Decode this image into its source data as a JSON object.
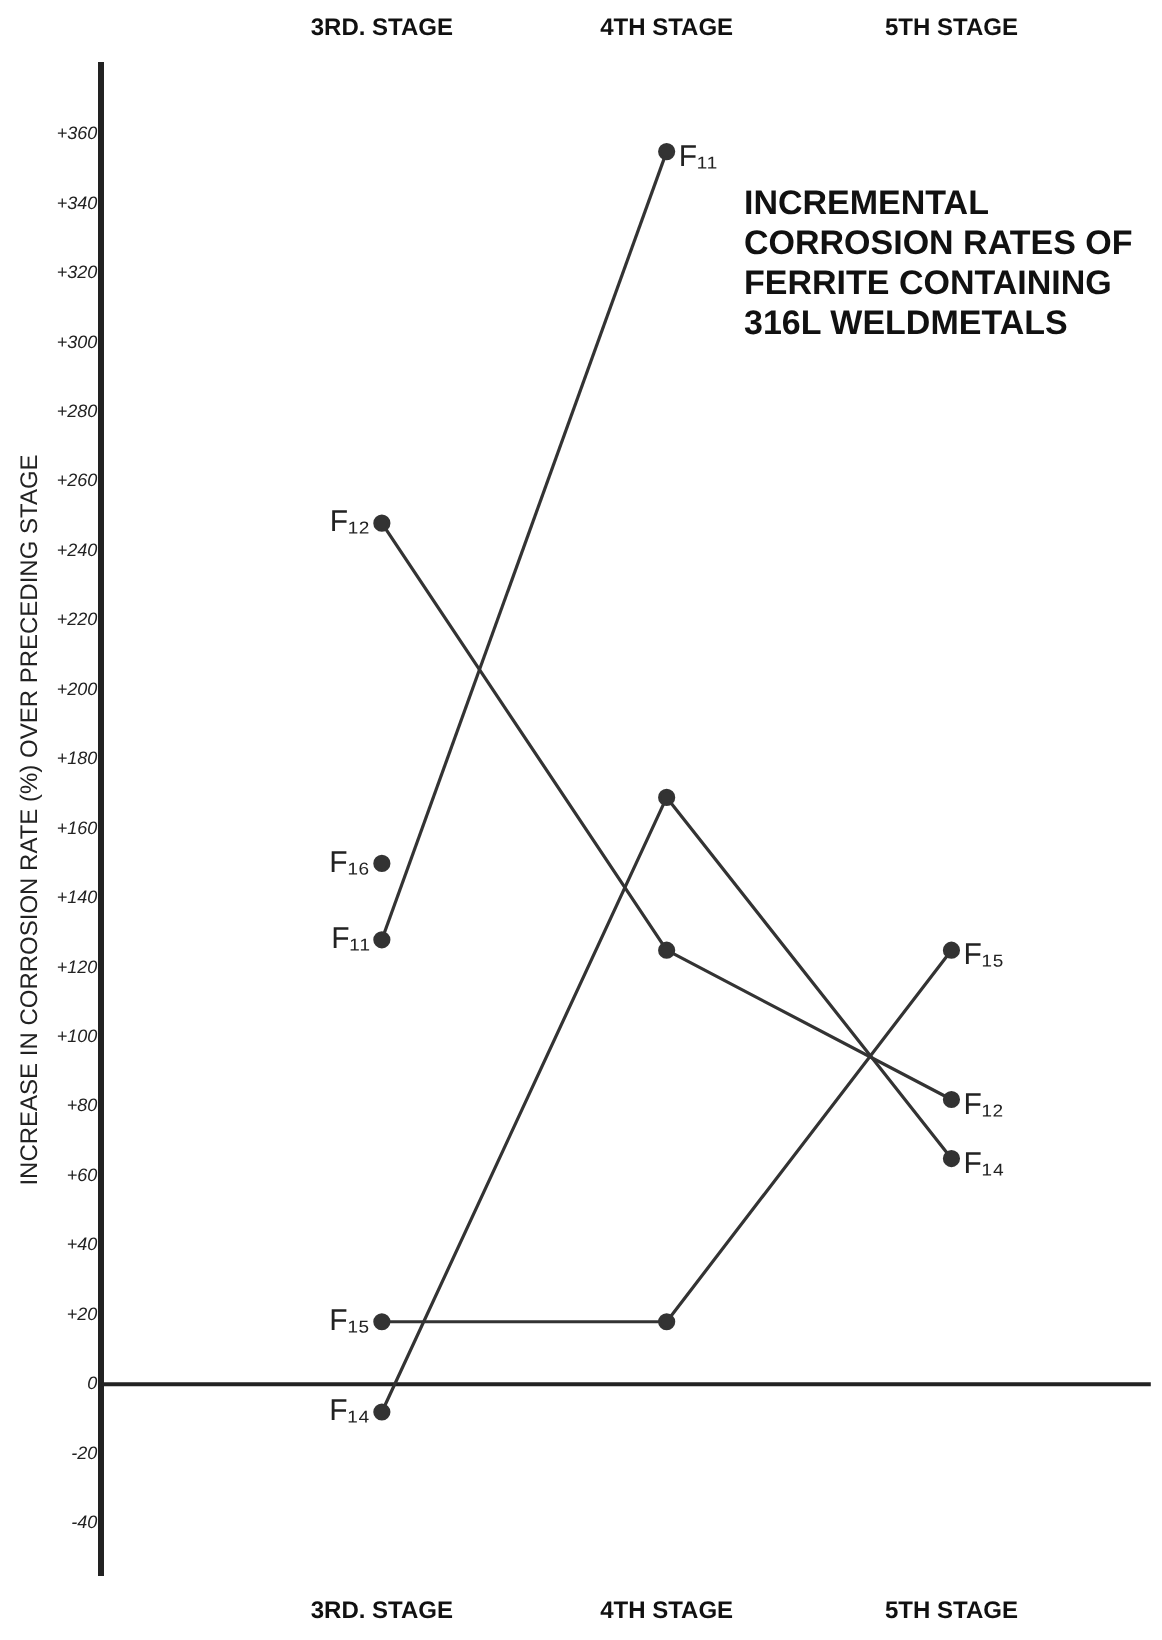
{
  "chart_data": {
    "type": "line",
    "title": "INCREMENTAL CORROSION RATES OF FERRITE CONTAINING 316L WELDMETALS",
    "ylabel": "INCREASE IN CORROSION RATE (%) OVER PRECEDING STAGE",
    "categories": [
      "3RD. STAGE",
      "4TH STAGE",
      "5TH STAGE"
    ],
    "series": [
      {
        "name": "F₁₁",
        "color": "#333333",
        "values": [
          128,
          355,
          null
        ]
      },
      {
        "name": "F₁₂",
        "color": "#333333",
        "values": [
          248,
          125,
          82
        ]
      },
      {
        "name": "F₁₄",
        "color": "#333333",
        "values": [
          -8,
          169,
          65
        ]
      },
      {
        "name": "F₁₅",
        "color": "#333333",
        "values": [
          18,
          18,
          125
        ]
      },
      {
        "name": "F₁₆",
        "color": "#333333",
        "values": [
          150,
          null,
          null
        ]
      }
    ],
    "ylim": [
      -55,
      380
    ],
    "yticks": [
      {
        "value": -40,
        "label": "-40"
      },
      {
        "value": -20,
        "label": "-20"
      },
      0,
      {
        "value": 20,
        "label": "+20"
      },
      {
        "value": 40,
        "label": "+40"
      },
      {
        "value": 60,
        "label": "+60"
      },
      {
        "value": 80,
        "label": "+80"
      },
      {
        "value": 100,
        "label": "+100"
      },
      {
        "value": 120,
        "label": "+120"
      },
      {
        "value": 140,
        "label": "+140"
      },
      {
        "value": 160,
        "label": "+160"
      },
      {
        "value": 180,
        "label": "+180"
      },
      {
        "value": 200,
        "label": "+200"
      },
      {
        "value": 220,
        "label": "+220"
      },
      {
        "value": 240,
        "label": "+240"
      },
      {
        "value": 260,
        "label": "+260"
      },
      {
        "value": 280,
        "label": "+280"
      },
      {
        "value": 300,
        "label": "+300"
      },
      {
        "value": 320,
        "label": "+320"
      },
      {
        "value": 340,
        "label": "+340"
      },
      {
        "value": 360,
        "label": "+360"
      }
    ],
    "ref_lines": [
      {
        "axis": "y",
        "value": 0,
        "color": "#222222"
      }
    ],
    "grid": false,
    "legend": false,
    "marker": "circle",
    "line_style": "solid"
  }
}
